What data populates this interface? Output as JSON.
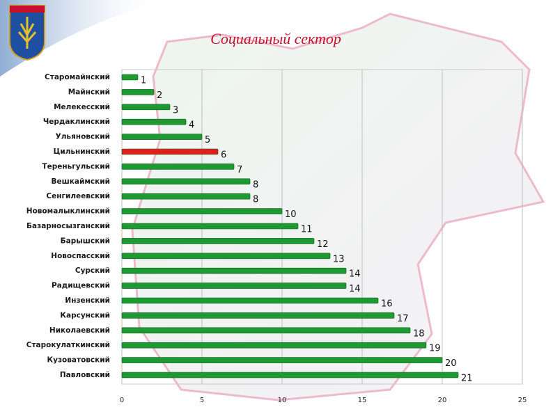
{
  "chart_data": {
    "type": "hbar",
    "title": "Социальный сектор",
    "categories": [
      "Старомайнский",
      "Майнский",
      "Мелекесский",
      "Чердаклинский",
      "Ульяновский",
      "Цильнинский",
      "Тереньгульский",
      "Вешкаймский",
      "Сенгилеевский",
      "Новомалыклинский",
      "Базарносызганский",
      "Барышский",
      "Новоспасский",
      "Сурский",
      "Радищевский",
      "Инзенский",
      "Карсунский",
      "Николаевский",
      "Старокулаткинский",
      "Кузоватовский",
      "Павловский"
    ],
    "values": [
      1,
      2,
      3,
      4,
      5,
      6,
      7,
      8,
      8,
      10,
      11,
      12,
      13,
      14,
      14,
      16,
      17,
      18,
      19,
      20,
      21
    ],
    "colors": [
      "#1f9a33",
      "#1f9a33",
      "#1f9a33",
      "#1f9a33",
      "#1f9a33",
      "#e0201b",
      "#1f9a33",
      "#1f9a33",
      "#1f9a33",
      "#1f9a33",
      "#1f9a33",
      "#1f9a33",
      "#1f9a33",
      "#1f9a33",
      "#1f9a33",
      "#1f9a33",
      "#1f9a33",
      "#1f9a33",
      "#1f9a33",
      "#1f9a33",
      "#1f9a33"
    ],
    "xlim": [
      0,
      25
    ],
    "xticks": [
      0,
      5,
      10,
      15,
      20,
      25
    ],
    "grid": true
  }
}
